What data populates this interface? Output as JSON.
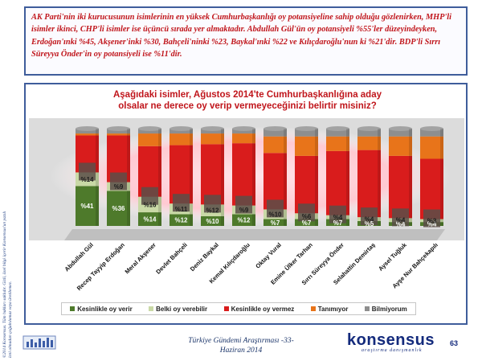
{
  "summary": "AK Parti'nin iki kurucusunun isimlerinin en yüksek Cumhurbaşkanlığı oy potansiyeline sahip olduğu gözlenirken, MHP'li isimler ikinci, CHP'li isimler ise üçüncü sırada yer almaktadır. Abdullah Gül'ün oy potansiyeli %55'ler düzeyindeyken, Erdoğan'ınki %45, Akşener'inki %30, Bahçeli'ninki %23, Baykal'ınki %22 ve Kılıçdaroğlu'nun ki %21'dir. BDP'li Sırrı Süreyya Önder'in oy potansiyeli ise %11'dir.",
  "side_note": "©2014 Konsensus. Tüm hakları saklıdır. Gizli, özel bilgi içerir Konsensus'un yazılı izni olmadan çoğaltılamaz veya üretilemez.",
  "footer": {
    "line1": "Türkiye Gündemi Araştırması -33-",
    "line2": "Haziran 2014"
  },
  "brand": {
    "name": "konsensus",
    "tagline": "araştırma danışmanlık",
    "page": "63"
  },
  "colors": {
    "background_panel": "#dcdcdc",
    "accent_ellipse": "#ffd3da",
    "series": [
      "#4e7a2b",
      "#c9d9a6",
      "#d91c1c",
      "#e8741a",
      "#8e8e8e"
    ]
  },
  "chart_data": {
    "type": "bar",
    "stacked": true,
    "percent_stacked": true,
    "title_line1": "Aşağıdaki isimler, Ağustos 2014'te Cumhurbaşkanlığına aday",
    "title_line2": "olsalar ne derece oy verip vermeyeceğinizi belirtir misiniz?",
    "legend_position": "bottom",
    "ylim": [
      0,
      100
    ],
    "categories": [
      "Abdullah Gül",
      "Recep Tayyip Erdoğan",
      "Meral Akşener",
      "Devlet Bahçeli",
      "Deniz Baykal",
      "Kemal Kılıçdaroğlu",
      "Oktay Vural",
      "Emine Ülker Tarhan",
      "Sırrı Süreyya Önder",
      "Selahattin Demirtaş",
      "Aysel Tuğluk",
      "Ayşe Nur Bahçekapılı"
    ],
    "series": [
      {
        "name": "Kesinlikle oy verir",
        "values": [
          41,
          36,
          14,
          12,
          10,
          12,
          7,
          7,
          7,
          5,
          4,
          4
        ],
        "labels": [
          "%41",
          "%36",
          "%14",
          "%12",
          "%10",
          "%12",
          "%7",
          "%7",
          "%7",
          "%5",
          "%4",
          "%4"
        ]
      },
      {
        "name": "Belki oy verebilir",
        "values": [
          14,
          9,
          16,
          11,
          12,
          9,
          10,
          6,
          4,
          4,
          4,
          3
        ],
        "labels": [
          "%14",
          "%9",
          "%16",
          "%11",
          "%12",
          "%9",
          "%10",
          "%6",
          "%4",
          "%4",
          "%4",
          "%3"
        ]
      },
      {
        "name": "Kesinlikle oy vermez",
        "values": [
          38,
          48,
          52,
          60,
          62,
          64,
          58,
          59,
          66,
          69,
          64,
          62
        ],
        "labels": [
          "",
          "",
          "",
          "",
          "",
          "",
          "",
          "",
          "",
          "",
          "",
          ""
        ]
      },
      {
        "name": "Tanımıyor",
        "values": [
          2,
          2,
          13,
          12,
          11,
          10,
          17,
          20,
          15,
          14,
          20,
          23
        ],
        "labels": [
          "",
          "",
          "",
          "",
          "",
          "",
          "",
          "",
          "",
          "",
          "",
          ""
        ]
      },
      {
        "name": "Bilmiyorum",
        "values": [
          5,
          5,
          5,
          5,
          5,
          5,
          8,
          8,
          8,
          8,
          8,
          8
        ],
        "labels": [
          "",
          "",
          "",
          "",
          "",
          "",
          "",
          "",
          "",
          "",
          "",
          ""
        ]
      }
    ]
  }
}
